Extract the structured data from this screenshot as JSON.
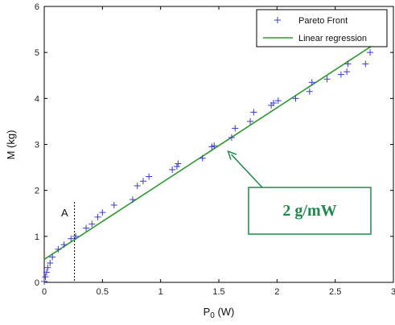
{
  "chart_data": {
    "type": "scatter",
    "title": "",
    "xlabel": "P",
    "xlabel_sub": "0",
    "xlabel_unit": " (W)",
    "ylabel": "M (kg)",
    "xlim": [
      0,
      3
    ],
    "ylim": [
      0,
      6
    ],
    "xticks": [
      "0",
      "0.5",
      "1",
      "1.5",
      "2",
      "2.5",
      "3"
    ],
    "xtick_values": [
      0,
      0.5,
      1,
      1.5,
      2,
      2.5,
      3
    ],
    "yticks": [
      "0",
      "1",
      "2",
      "3",
      "4",
      "5",
      "6"
    ],
    "ytick_values": [
      0,
      1,
      2,
      3,
      4,
      5,
      6
    ],
    "grid": false,
    "legend_position": "top-right",
    "series": [
      {
        "name": "Pareto Front",
        "kind": "scatter",
        "marker": "+",
        "color": "#3a3ad6",
        "points": [
          [
            0.0,
            0.02
          ],
          [
            0.01,
            0.12
          ],
          [
            0.02,
            0.22
          ],
          [
            0.03,
            0.32
          ],
          [
            0.05,
            0.42
          ],
          [
            0.07,
            0.55
          ],
          [
            0.12,
            0.72
          ],
          [
            0.17,
            0.82
          ],
          [
            0.23,
            0.95
          ],
          [
            0.27,
            1.0
          ],
          [
            0.36,
            1.18
          ],
          [
            0.41,
            1.27
          ],
          [
            0.46,
            1.42
          ],
          [
            0.5,
            1.52
          ],
          [
            0.6,
            1.68
          ],
          [
            0.76,
            1.8
          ],
          [
            0.8,
            2.1
          ],
          [
            0.85,
            2.2
          ],
          [
            0.9,
            2.3
          ],
          [
            1.1,
            2.45
          ],
          [
            1.14,
            2.52
          ],
          [
            1.15,
            2.58
          ],
          [
            1.36,
            2.7
          ],
          [
            1.44,
            2.95
          ],
          [
            1.46,
            2.97
          ],
          [
            1.61,
            3.15
          ],
          [
            1.64,
            3.35
          ],
          [
            1.77,
            3.5
          ],
          [
            1.8,
            3.7
          ],
          [
            1.95,
            3.85
          ],
          [
            1.97,
            3.9
          ],
          [
            2.01,
            3.95
          ],
          [
            2.16,
            4.0
          ],
          [
            2.28,
            4.15
          ],
          [
            2.3,
            4.35
          ],
          [
            2.43,
            4.42
          ],
          [
            2.55,
            4.52
          ],
          [
            2.6,
            4.58
          ],
          [
            2.61,
            4.75
          ],
          [
            2.76,
            4.75
          ],
          [
            2.8,
            5.0
          ]
        ]
      },
      {
        "name": "Linear regression",
        "kind": "line",
        "color": "#2f9a2f",
        "points": [
          [
            0.0,
            0.5
          ],
          [
            2.82,
            5.15
          ]
        ]
      }
    ],
    "annotations": {
      "vertical_marker": {
        "label": "A",
        "x": 0.26,
        "y_top": 1.75
      },
      "callout": {
        "text": "2 g/mW",
        "arrow_target": [
          1.58,
          2.85
        ],
        "color": "#1f8a4a"
      }
    }
  }
}
